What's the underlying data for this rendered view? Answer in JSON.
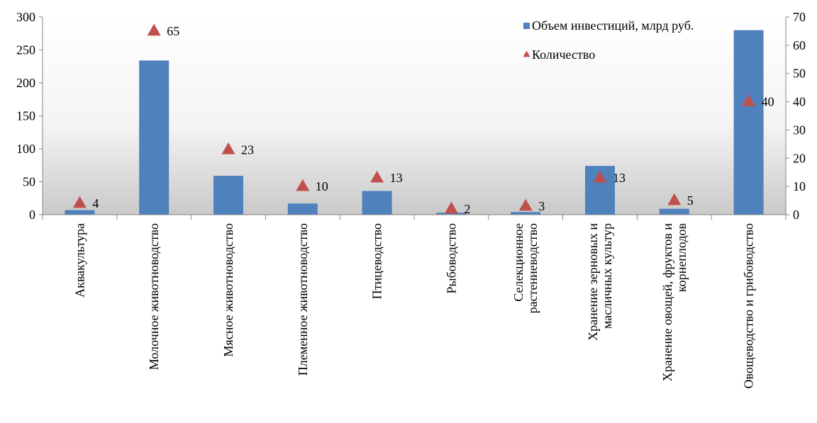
{
  "chart_data": {
    "type": "bar",
    "categories": [
      [
        "Аквакультура"
      ],
      [
        "Молочное животноводство"
      ],
      [
        "Мясное животноводство"
      ],
      [
        "Племенное животноводство"
      ],
      [
        "Птицеводство"
      ],
      [
        "Рыбоводство"
      ],
      [
        "Селекционное",
        "растениеводство"
      ],
      [
        "Хранение зерновых и",
        "масличных культур"
      ],
      [
        "Хранение овощей, фруктов и",
        "корнеплодов"
      ],
      [
        "Овощеводство и грибоводство"
      ]
    ],
    "series": [
      {
        "name": "Объем инвестиций, млрд руб.",
        "type": "bar",
        "axis": "left",
        "color": "#4f81bd",
        "values": [
          7,
          234,
          59,
          17,
          36,
          3,
          4,
          74,
          9,
          280
        ]
      },
      {
        "name": "Количество",
        "type": "scatter",
        "axis": "right",
        "color": "#c0504d",
        "marker": "triangle",
        "values": [
          4,
          65,
          23,
          10,
          13,
          2,
          3,
          13,
          5,
          40
        ],
        "labels": [
          "4",
          "65",
          "23",
          "10",
          "13",
          "2",
          "3",
          "13",
          "5",
          "40"
        ]
      }
    ],
    "y_left": {
      "range": [
        0,
        300
      ],
      "ticks": [
        "0",
        "50",
        "100",
        "150",
        "200",
        "250",
        "300"
      ]
    },
    "y_right": {
      "range": [
        0,
        70
      ],
      "ticks": [
        "0",
        "10",
        "20",
        "30",
        "40",
        "50",
        "60",
        "70"
      ]
    },
    "legend": {
      "position": "top-right"
    },
    "grid": false
  }
}
